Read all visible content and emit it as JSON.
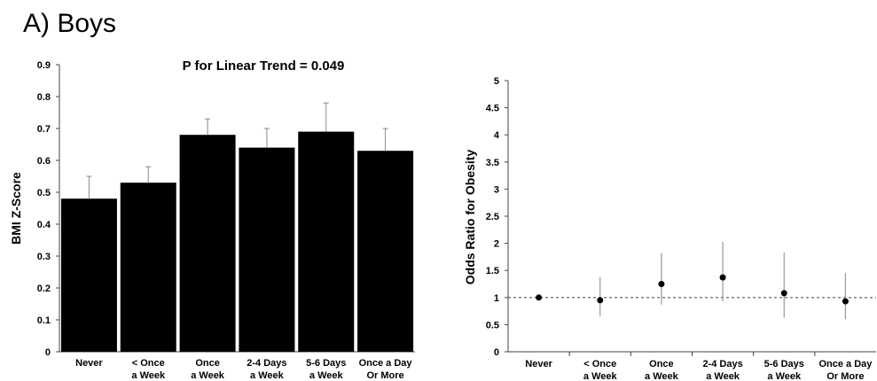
{
  "panel_title": "A) Boys",
  "chart_data": [
    {
      "type": "bar",
      "annotation": "P for Linear Trend =  0.049",
      "ylabel": "BMI Z-Score",
      "xlabel": "",
      "ylim": [
        0,
        0.9
      ],
      "yticks": [
        "0",
        "0.1",
        "0.2",
        "0.3",
        "0.4",
        "0.5",
        "0.6",
        "0.7",
        "0.8",
        "0.9"
      ],
      "categories": [
        [
          "Never"
        ],
        [
          "< Once",
          "a Week"
        ],
        [
          "Once",
          "a Week"
        ],
        [
          "2-4 Days",
          "a Week"
        ],
        [
          "5-6 Days",
          "a Week"
        ],
        [
          "Once a Day",
          "Or More"
        ]
      ],
      "values": [
        0.48,
        0.53,
        0.68,
        0.64,
        0.69,
        0.63
      ],
      "error_upper": [
        0.55,
        0.58,
        0.73,
        0.7,
        0.78,
        0.7
      ],
      "bar_color": "#000000",
      "grid": false
    },
    {
      "type": "scatter",
      "ylabel": "Odds Ratio for Obesity",
      "xlabel": "",
      "ylim": [
        0,
        5
      ],
      "yticks": [
        "0",
        "0.5",
        "1",
        "1.5",
        "2",
        "2.5",
        "3",
        "3.5",
        "4",
        "4.5",
        "5"
      ],
      "categories": [
        [
          "Never"
        ],
        [
          "< Once",
          "a Week"
        ],
        [
          "Once",
          "a Week"
        ],
        [
          "2-4 Days",
          "a Week"
        ],
        [
          "5-6 Days",
          "a Week"
        ],
        [
          "Once a Day",
          "Or More"
        ]
      ],
      "values": [
        1.0,
        0.95,
        1.25,
        1.37,
        1.08,
        0.93
      ],
      "ci_low": [
        null,
        0.65,
        0.87,
        0.93,
        0.63,
        0.6
      ],
      "ci_high": [
        null,
        1.38,
        1.82,
        2.03,
        1.83,
        1.45
      ],
      "reference_line": 1,
      "point_color": "#000000",
      "grid": false
    }
  ]
}
